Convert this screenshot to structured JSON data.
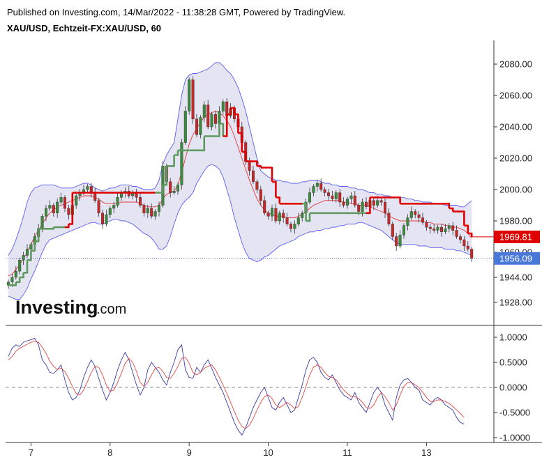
{
  "header": {
    "published_line": "Published on Investing.com, 14/Mar/2022 - 11:38:28 GMT, Powered by TradingView.",
    "symbol_line": "XAU/USD, Echtzeit-FX:XAU/USD, 60"
  },
  "logo": {
    "main": "Investing",
    "suffix": ".com"
  },
  "chart_data": [
    {
      "type": "candlestick",
      "title": "XAU/USD, Echtzeit-FX:XAU/USD, 60",
      "ylim": [
        1918,
        2090
      ],
      "yticks": [
        "2080.00",
        "2060.00",
        "2040.00",
        "2020.00",
        "2000.00",
        "1980.00",
        "1960.00",
        "1944.00",
        "1928.00"
      ],
      "ytick_values": [
        2080,
        2060,
        2040,
        2020,
        2000,
        1980,
        1960,
        1944,
        1928
      ],
      "xticks": [
        "7",
        "8",
        "9",
        "10",
        "11",
        "13"
      ],
      "xtick_index": [
        6,
        27,
        48,
        69,
        90,
        111
      ],
      "bar_count": 124,
      "last_price": "1956.09",
      "last_price_value": 1956.09,
      "stop_level_label": "1969.81",
      "stop_level_value": 1969.81,
      "bollinger_color": "#5a5ef0",
      "bollinger_fill": "#e4e4f2",
      "sma_color": "#e03a3a",
      "trend_up_color": "#5e9a5e",
      "trend_down_color": "#e00000",
      "up_color": "#3c8a3c",
      "down_color": "#c62828",
      "close": [
        1941,
        1944,
        1948,
        1955,
        1958,
        1962,
        1965,
        1970,
        1975,
        1983,
        1988,
        1990,
        1985,
        1992,
        1995,
        1988,
        1984,
        1990,
        1996,
        1998,
        2000,
        2002,
        1998,
        1993,
        1985,
        1978,
        1984,
        1988,
        1990,
        1995,
        1998,
        1999,
        1996,
        1998,
        1995,
        1990,
        1985,
        1988,
        1983,
        1986,
        1990,
        2015,
        2005,
        1998,
        1999,
        2003,
        2030,
        2050,
        2070,
        2045,
        2035,
        2046,
        2054,
        2040,
        2048,
        2042,
        2050,
        2056,
        2047,
        2052,
        2045,
        2040,
        2030,
        2018,
        2012,
        2005,
        2000,
        1993,
        1985,
        1983,
        1988,
        1980,
        1985,
        1982,
        1978,
        1975,
        1978,
        1982,
        1985,
        1992,
        1998,
        2002,
        2004,
        2000,
        1998,
        1996,
        1994,
        1998,
        1992,
        1990,
        1994,
        1996,
        1990,
        1986,
        1992,
        1989,
        1993,
        1990,
        1993,
        1992,
        1985,
        1978,
        1970,
        1964,
        1971,
        1977,
        1982,
        1986,
        1984,
        1982,
        1979,
        1976,
        1975,
        1974,
        1976,
        1973,
        1975,
        1977,
        1974,
        1970,
        1968,
        1964,
        1962,
        1956.09
      ],
      "bb_upper": [
        1958,
        1962,
        1968,
        1975,
        1983,
        1992,
        1998,
        2001,
        2002,
        2003,
        2003,
        2003,
        2003,
        2002,
        2001,
        2001,
        2001,
        2001,
        2002,
        2003,
        2004,
        2004,
        2003,
        2001,
        2000,
        1999,
        2000,
        2001,
        2001,
        2002,
        2003,
        2003,
        2003,
        2002,
        2002,
        2001,
        2000,
        2000,
        2000,
        2001,
        2006,
        2016,
        2022,
        2026,
        2030,
        2045,
        2060,
        2070,
        2073,
        2074,
        2074,
        2075,
        2076,
        2077,
        2079,
        2081,
        2081,
        2079,
        2076,
        2074,
        2070,
        2065,
        2058,
        2050,
        2040,
        2030,
        2020,
        2012,
        2010,
        2008,
        2007,
        2006,
        2006,
        2005,
        2005,
        2004,
        2004,
        2004,
        2005,
        2005,
        2006,
        2006,
        2006,
        2005,
        2004,
        2004,
        2003,
        2003,
        2002,
        2002,
        2002,
        2001,
        2001,
        2000,
        2000,
        1999,
        1998,
        1998,
        1997,
        1997,
        1996,
        1996,
        1995,
        1995,
        1995,
        1995,
        1994,
        1994,
        1993,
        1993,
        1992,
        1992,
        1992,
        1991,
        1991,
        1991,
        1990,
        1990,
        1990,
        1990,
        1989,
        1989,
        1991,
        1993
      ],
      "bb_lower": [
        1932,
        1931,
        1930,
        1930,
        1933,
        1937,
        1943,
        1948,
        1954,
        1960,
        1965,
        1968,
        1969,
        1970,
        1971,
        1972,
        1973,
        1974,
        1975,
        1976,
        1977,
        1978,
        1979,
        1979,
        1978,
        1978,
        1979,
        1980,
        1981,
        1981,
        1980,
        1980,
        1979,
        1978,
        1976,
        1974,
        1972,
        1971,
        1969,
        1966,
        1962,
        1962,
        1964,
        1970,
        1978,
        1985,
        1990,
        1993,
        1995,
        1998,
        2004,
        2008,
        2012,
        2015,
        2016,
        2015,
        2013,
        2008,
        2000,
        1992,
        1982,
        1974,
        1966,
        1960,
        1956,
        1955,
        1954,
        1955,
        1957,
        1958,
        1960,
        1962,
        1964,
        1965,
        1966,
        1967,
        1968,
        1970,
        1971,
        1972,
        1973,
        1973,
        1974,
        1974,
        1975,
        1975,
        1976,
        1976,
        1977,
        1977,
        1978,
        1978,
        1978,
        1979,
        1979,
        1978,
        1977,
        1976,
        1975,
        1974,
        1972,
        1970,
        1968,
        1966,
        1965,
        1965,
        1965,
        1965,
        1965,
        1964,
        1964,
        1964,
        1963,
        1963,
        1963,
        1963,
        1962,
        1962,
        1962,
        1961,
        1961,
        1960,
        1959,
        1958
      ],
      "sma": [
        1945,
        1946,
        1949,
        1952,
        1956,
        1960,
        1965,
        1970,
        1974,
        1978,
        1982,
        1985,
        1987,
        1989,
        1990,
        1991,
        1992,
        1993,
        1994,
        1995,
        1996,
        1996,
        1996,
        1995,
        1994,
        1992,
        1991,
        1991,
        1991,
        1991,
        1992,
        1992,
        1992,
        1992,
        1992,
        1991,
        1990,
        1989,
        1989,
        1989,
        1990,
        1994,
        1997,
        1998,
        1999,
        2003,
        2011,
        2020,
        2029,
        2035,
        2039,
        2043,
        2046,
        2048,
        2049,
        2050,
        2049,
        2047,
        2044,
        2040,
        2034,
        2027,
        2020,
        2013,
        2006,
        2000,
        1994,
        1990,
        1987,
        1985,
        1984,
        1983,
        1983,
        1983,
        1982,
        1982,
        1982,
        1983,
        1984,
        1986,
        1988,
        1990,
        1991,
        1992,
        1993,
        1993,
        1993,
        1993,
        1993,
        1992,
        1992,
        1991,
        1991,
        1990,
        1990,
        1990,
        1989,
        1988,
        1987,
        1986,
        1985,
        1983,
        1982,
        1981,
        1980,
        1980,
        1980,
        1980,
        1980,
        1980,
        1980,
        1979,
        1979,
        1978,
        1978,
        1978,
        1977,
        1977,
        1976,
        1976,
        1975,
        1974,
        1972,
        1969
      ],
      "supertrend": [
        1939,
        1939,
        1941,
        1944,
        1947,
        1955,
        1961,
        1967,
        1975,
        1975,
        1975,
        1975,
        1976,
        1976,
        1976,
        1976,
        1978,
        1998,
        1998,
        1998,
        1998,
        1998,
        1998,
        1998,
        1998,
        1998,
        1998,
        1998,
        1998,
        1998,
        1998,
        1998,
        1998,
        1998,
        1998,
        1998,
        1998,
        1998,
        1998,
        1998,
        1998,
        2003,
        2015,
        2015,
        2022,
        2025,
        2025,
        2025,
        2025,
        2025,
        2025,
        2025,
        2034,
        2034,
        2034,
        2034,
        2042,
        2034,
        2048,
        2052,
        2048,
        2036,
        2024,
        2018,
        2018,
        2018,
        2015,
        2014,
        2014,
        2014,
        2005,
        1995,
        1991,
        1991,
        1991,
        1991,
        1991,
        1991,
        1991,
        1980,
        1985,
        1985,
        1985,
        1985,
        1985,
        1985,
        1985,
        1985,
        1985,
        1985,
        1985,
        1985,
        1985,
        1985,
        1985,
        1985,
        1995,
        1995,
        1995,
        1995,
        1995,
        1995,
        1995,
        1995,
        1991,
        1991,
        1991,
        1991,
        1991,
        1991,
        1991,
        1991,
        1991,
        1991,
        1991,
        1991,
        1991,
        1988,
        1986,
        1986,
        1986,
        1977,
        1972,
        1969.81
      ],
      "supertrend_dir": [
        1,
        1,
        1,
        1,
        1,
        1,
        1,
        1,
        1,
        1,
        1,
        1,
        1,
        1,
        1,
        1,
        -1,
        -1,
        -1,
        -1,
        -1,
        -1,
        -1,
        -1,
        -1,
        -1,
        -1,
        -1,
        -1,
        -1,
        -1,
        -1,
        -1,
        -1,
        -1,
        -1,
        -1,
        -1,
        -1,
        -1,
        1,
        1,
        1,
        1,
        1,
        1,
        1,
        1,
        1,
        1,
        1,
        1,
        1,
        1,
        1,
        1,
        1,
        1,
        -1,
        -1,
        -1,
        -1,
        -1,
        -1,
        -1,
        -1,
        -1,
        -1,
        -1,
        -1,
        -1,
        -1,
        -1,
        -1,
        -1,
        -1,
        -1,
        -1,
        -1,
        1,
        1,
        1,
        1,
        1,
        1,
        1,
        1,
        1,
        1,
        1,
        1,
        1,
        1,
        1,
        1,
        1,
        -1,
        -1,
        -1,
        -1,
        -1,
        -1,
        -1,
        -1,
        -1,
        -1,
        -1,
        -1,
        -1,
        -1,
        -1,
        -1,
        -1,
        -1,
        -1,
        -1,
        -1,
        -1,
        -1,
        -1,
        -1,
        -1,
        -1,
        -1
      ]
    },
    {
      "type": "line",
      "title": "",
      "ylim": [
        -1.05,
        1.05
      ],
      "yticks": [
        "1.0000",
        "0.5000",
        "0.0000",
        "-0.5000",
        "-1.0000"
      ],
      "ytick_values": [
        1.0,
        0.5,
        0.0,
        -0.5,
        -1.0
      ],
      "zero_line": true,
      "series": [
        {
          "color": "#3a3aa8",
          "values": [
            0.62,
            0.78,
            0.85,
            0.82,
            0.9,
            0.93,
            0.95,
            0.98,
            0.85,
            0.55,
            0.45,
            0.3,
            0.28,
            0.35,
            0.45,
            0.15,
            -0.1,
            -0.25,
            -0.2,
            -0.05,
            0.2,
            0.4,
            0.55,
            0.42,
            0.18,
            -0.05,
            -0.25,
            -0.1,
            0.1,
            0.35,
            0.55,
            0.7,
            0.55,
            0.3,
            0.05,
            -0.15,
            0.0,
            0.35,
            0.5,
            0.4,
            0.3,
            0.15,
            0.05,
            0.3,
            0.5,
            0.75,
            0.85,
            0.35,
            0.2,
            0.18,
            0.4,
            0.3,
            0.45,
            0.55,
            0.38,
            0.2,
            0.05,
            -0.1,
            -0.3,
            -0.5,
            -0.7,
            -0.85,
            -0.95,
            -0.8,
            -0.6,
            -0.4,
            -0.25,
            -0.1,
            0.0,
            -0.2,
            -0.4,
            -0.45,
            -0.3,
            -0.2,
            -0.35,
            -0.5,
            -0.45,
            -0.2,
            0.05,
            0.35,
            0.55,
            0.6,
            0.5,
            0.3,
            0.2,
            0.15,
            0.25,
            0.1,
            -0.05,
            -0.15,
            -0.2,
            -0.25,
            -0.1,
            -0.3,
            -0.4,
            -0.5,
            -0.3,
            -0.1,
            0.0,
            -0.1,
            -0.35,
            -0.5,
            -0.65,
            -0.2,
            0.05,
            0.15,
            0.18,
            0.1,
            0.0,
            -0.05,
            -0.25,
            -0.3,
            -0.35,
            -0.25,
            -0.2,
            -0.25,
            -0.35,
            -0.4,
            -0.45,
            -0.6,
            -0.7,
            -0.73
          ],
          "name": ""
        },
        {
          "color": "#e04848",
          "values": [
            0.55,
            0.62,
            0.72,
            0.78,
            0.82,
            0.86,
            0.9,
            0.92,
            0.9,
            0.8,
            0.68,
            0.52,
            0.42,
            0.36,
            0.38,
            0.32,
            0.18,
            0.02,
            -0.12,
            -0.15,
            -0.05,
            0.12,
            0.3,
            0.42,
            0.4,
            0.25,
            0.05,
            -0.08,
            -0.05,
            0.1,
            0.28,
            0.48,
            0.58,
            0.5,
            0.32,
            0.1,
            0.02,
            0.1,
            0.25,
            0.38,
            0.4,
            0.32,
            0.2,
            0.18,
            0.28,
            0.42,
            0.58,
            0.6,
            0.48,
            0.3,
            0.25,
            0.3,
            0.38,
            0.42,
            0.45,
            0.35,
            0.2,
            0.05,
            -0.12,
            -0.3,
            -0.48,
            -0.65,
            -0.78,
            -0.82,
            -0.75,
            -0.62,
            -0.45,
            -0.3,
            -0.18,
            -0.15,
            -0.22,
            -0.35,
            -0.4,
            -0.35,
            -0.3,
            -0.35,
            -0.42,
            -0.38,
            -0.2,
            0.02,
            0.25,
            0.4,
            0.45,
            0.4,
            0.3,
            0.22,
            0.2,
            0.15,
            0.05,
            -0.05,
            -0.12,
            -0.18,
            -0.18,
            -0.22,
            -0.3,
            -0.4,
            -0.42,
            -0.35,
            -0.2,
            -0.1,
            -0.18,
            -0.3,
            -0.45,
            -0.35,
            -0.15,
            0.02,
            0.1,
            0.1,
            0.05,
            0.0,
            -0.1,
            -0.2,
            -0.28,
            -0.28,
            -0.25,
            -0.25,
            -0.28,
            -0.32,
            -0.38,
            -0.45,
            -0.52,
            -0.6
          ],
          "name": ""
        }
      ]
    }
  ]
}
